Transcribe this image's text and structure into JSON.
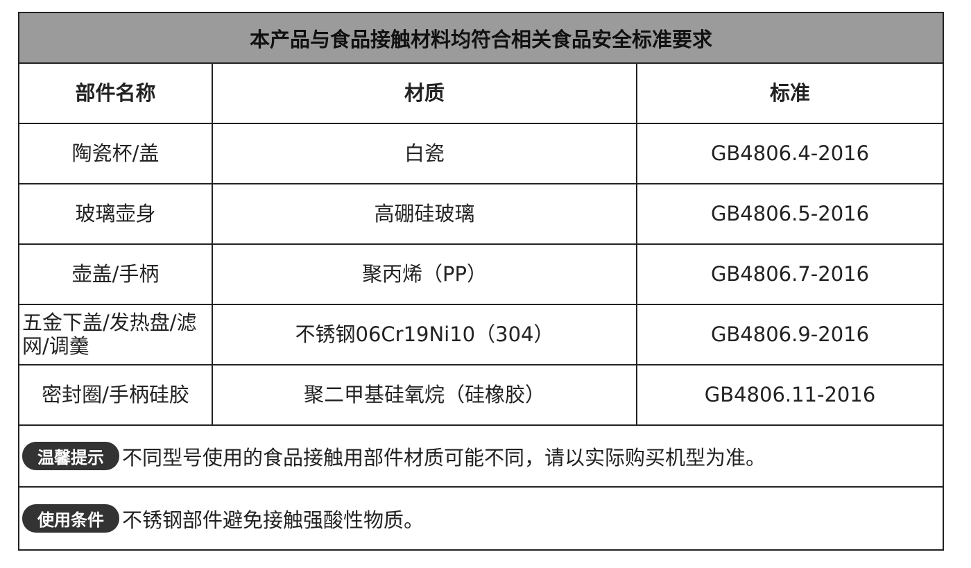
{
  "title": "本产品与食品接触材料均符合相关食品安全标准要求",
  "columns": [
    "部件名称",
    "材质",
    "标准"
  ],
  "rows": [
    {
      "part": "陶瓷杯/盖",
      "material": "白瓷",
      "standard": "GB4806.4-2016"
    },
    {
      "part": "玻璃壶身",
      "material": "高硼硅玻璃",
      "standard": "GB4806.5-2016"
    },
    {
      "part": "壶盖/手柄",
      "material": "聚丙烯（PP）",
      "standard": "GB4806.7-2016"
    },
    {
      "part": "五金下盖/发热盘/滤网/调羹",
      "material": "不锈钢06Cr19Ni10（304）",
      "standard": "GB4806.9-2016"
    },
    {
      "part": "密封圈/手柄硅胶",
      "material": "聚二甲基硅氧烷（硅橡胶）",
      "standard": "GB4806.11-2016"
    }
  ],
  "notes": [
    {
      "badge": "温馨提示",
      "text": "不同型号使用的食品接触用部件材质可能不同，请以实际购买机型为准。"
    },
    {
      "badge": "使用条件",
      "text": "不锈钢部件避免接触强酸性物质。"
    }
  ]
}
